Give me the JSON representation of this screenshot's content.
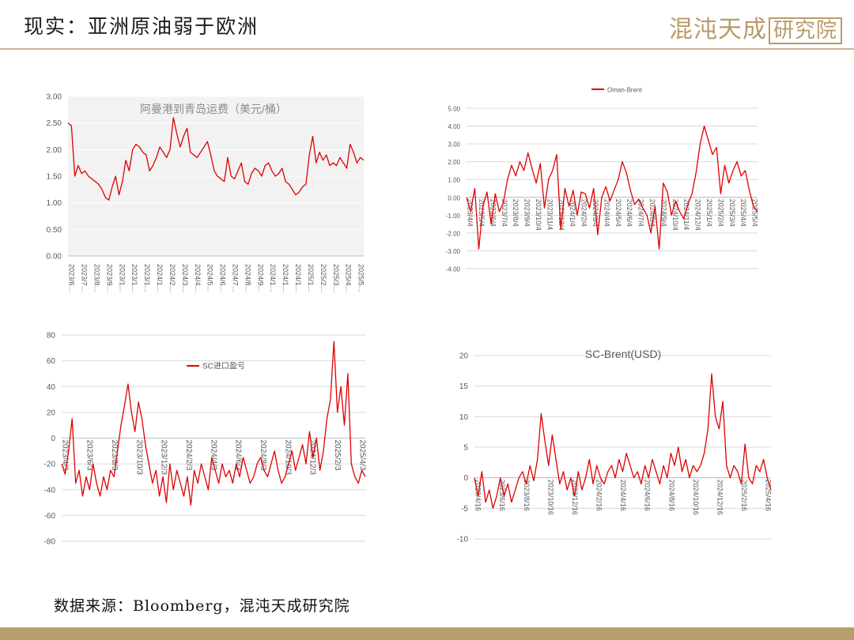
{
  "header": {
    "title": "现实：亚洲原油弱于欧洲",
    "logo_script": "混沌天成",
    "logo_box": "研究院"
  },
  "footer": {
    "source": "数据来源：Bloomberg，混沌天成研究院"
  },
  "colors": {
    "series": "#e00000",
    "accent": "#b89e6e",
    "grid": "#d9d9d9"
  },
  "chart_data": [
    {
      "type": "line",
      "title": "阿曼港到青岛运费（美元/桶）",
      "legend_position": "none",
      "grid": true,
      "ylim": [
        0,
        3
      ],
      "yticks": [
        "0.00",
        "0.50",
        "1.00",
        "1.50",
        "2.00",
        "2.50",
        "3.00"
      ],
      "x_labels": [
        "2023/6…",
        "2023/7…",
        "2023/8…",
        "2023/9…",
        "2023/1…",
        "2023/1…",
        "2023/1…",
        "2024/1…",
        "2024/2…",
        "2024/3…",
        "2024/4…",
        "2024/5…",
        "2024/6…",
        "2024/7…",
        "2024/8…",
        "2024/9…",
        "2024/1…",
        "2024/1…",
        "2024/1…",
        "2025/1…",
        "2025/2…",
        "2025/3…",
        "2025/4…",
        "2025/5…"
      ],
      "series": [
        {
          "values": [
            2.5,
            2.45,
            1.5,
            1.7,
            1.55,
            1.6,
            1.5,
            1.45,
            1.4,
            1.35,
            1.25,
            1.1,
            1.05,
            1.3,
            1.5,
            1.15,
            1.4,
            1.8,
            1.6,
            2.0,
            2.1,
            2.05,
            1.95,
            1.9,
            1.6,
            1.7,
            1.85,
            2.05,
            1.95,
            1.85,
            2.0,
            2.6,
            2.3,
            2.05,
            2.25,
            2.4,
            1.95,
            1.9,
            1.85,
            1.95,
            2.05,
            2.15,
            1.9,
            1.6,
            1.5,
            1.45,
            1.4,
            1.85,
            1.5,
            1.45,
            1.6,
            1.75,
            1.4,
            1.35,
            1.55,
            1.65,
            1.6,
            1.5,
            1.7,
            1.75,
            1.6,
            1.5,
            1.55,
            1.65,
            1.4,
            1.35,
            1.25,
            1.15,
            1.2,
            1.3,
            1.35,
            1.9,
            2.25,
            1.75,
            1.95,
            1.8,
            1.9,
            1.7,
            1.75,
            1.7,
            1.85,
            1.75,
            1.65,
            2.1,
            1.95,
            1.75,
            1.85,
            1.8
          ]
        }
      ]
    },
    {
      "type": "line",
      "title": "",
      "legend_position": "top",
      "grid": true,
      "ylim": [
        -4,
        5
      ],
      "yticks": [
        "-4.00",
        "-3.00",
        "-2.00",
        "-1.00",
        "0.00",
        "1.00",
        "2.00",
        "3.00",
        "4.00",
        "5.00"
      ],
      "x_labels": [
        "2023/4/4",
        "2023/5/4",
        "2023/6/4",
        "2023/7/4",
        "2023/8/4",
        "2023/9/4",
        "2023/10/4",
        "2023/11/4",
        "2023/12/4",
        "2024/1/4",
        "2024/2/4",
        "2024/3/4",
        "2024/4/4",
        "2024/5/4",
        "2024/6/4",
        "2024/7/4",
        "2024/8/4",
        "2024/9/4",
        "2024/10/4",
        "2024/11/4",
        "2024/12/4",
        "2025/1/4",
        "2025/2/4",
        "2025/3/4",
        "2025/4/4",
        "2025/5/4"
      ],
      "series": [
        {
          "name": "Oman-Brent",
          "values": [
            0.0,
            -0.8,
            0.5,
            -2.9,
            -0.5,
            0.3,
            -1.5,
            0.2,
            -0.8,
            -0.3,
            1.0,
            1.8,
            1.2,
            2.0,
            1.5,
            2.5,
            1.6,
            0.8,
            1.9,
            -0.6,
            1.0,
            1.5,
            2.4,
            -1.8,
            0.5,
            -0.5,
            0.4,
            -1.0,
            0.3,
            0.2,
            -0.6,
            0.5,
            -2.1,
            0.0,
            0.6,
            -0.2,
            0.4,
            1.0,
            2.0,
            1.4,
            0.4,
            -0.4,
            -0.1,
            -0.6,
            -1.0,
            -2.0,
            -0.5,
            -2.9,
            0.8,
            0.3,
            -1.0,
            -0.2,
            -0.8,
            -1.2,
            -0.4,
            0.2,
            1.4,
            3.0,
            4.0,
            3.2,
            2.4,
            2.8,
            0.2,
            1.8,
            0.8,
            1.5,
            2.0,
            1.2,
            1.5,
            0.4,
            -0.5,
            -0.8
          ]
        }
      ]
    },
    {
      "type": "line",
      "title": "",
      "legend_position": "top-right",
      "grid": true,
      "ylim": [
        -80,
        80
      ],
      "yticks": [
        "-80",
        "-60",
        "-40",
        "-20",
        "0",
        "20",
        "40",
        "60",
        "80"
      ],
      "x_labels": [
        "2023/4/3",
        "2023/6/3",
        "2023/8/3",
        "2023/10/3",
        "2023/12/3",
        "2024/2/3",
        "2024/4/3",
        "2024/6/3",
        "2024/8/3",
        "2024/10/3",
        "2024/12/3",
        "2025/2/3",
        "2025/4/3"
      ],
      "series": [
        {
          "name": "SC进口盈亏",
          "values": [
            -20,
            -28,
            -10,
            15,
            -35,
            -25,
            -45,
            -30,
            -40,
            -20,
            -35,
            -45,
            -30,
            -40,
            -25,
            -30,
            -10,
            10,
            25,
            42,
            20,
            5,
            28,
            15,
            -5,
            -20,
            -35,
            -25,
            -45,
            -30,
            -50,
            -20,
            -40,
            -25,
            -35,
            -45,
            -30,
            -52,
            -25,
            -35,
            -20,
            -30,
            -40,
            -15,
            -25,
            -35,
            -20,
            -30,
            -25,
            -35,
            -20,
            -30,
            -15,
            -25,
            -35,
            -30,
            -20,
            -15,
            -25,
            -30,
            -20,
            -10,
            -25,
            -35,
            -30,
            -20,
            -10,
            -25,
            -15,
            -5,
            -20,
            5,
            -15,
            0,
            -25,
            -10,
            15,
            30,
            75,
            20,
            40,
            10,
            50,
            -20,
            -30,
            -35,
            -25,
            -30
          ]
        }
      ]
    },
    {
      "type": "line",
      "title": "SC-Brent(USD)",
      "legend_position": "none",
      "grid": true,
      "ylim": [
        -10,
        20
      ],
      "yticks": [
        "-10",
        "-5",
        "0",
        "5",
        "10",
        "15",
        "20"
      ],
      "x_labels": [
        "2023/4/16",
        "2023/6/16",
        "2023/8/16",
        "2023/10/16",
        "2023/12/16",
        "2024/2/16",
        "2024/4/16",
        "2024/6/16",
        "2024/8/16",
        "2024/10/16",
        "2024/12/16",
        "2025/2/16",
        "2025/4/16"
      ],
      "series": [
        {
          "values": [
            0,
            -3,
            1,
            -4,
            -2,
            -5,
            -3,
            0,
            -3,
            -1,
            -4,
            -2,
            0,
            1,
            -1,
            2,
            -0.5,
            3,
            10.5,
            6,
            2,
            7,
            3,
            -1,
            1,
            -2,
            0,
            -3,
            1,
            -2,
            0,
            3,
            -1,
            2,
            0,
            -1,
            1,
            2,
            0,
            3,
            1,
            4,
            2,
            0,
            1,
            -1,
            2,
            0,
            3,
            1,
            -1,
            2,
            0,
            4,
            2,
            5,
            1,
            3,
            0,
            2,
            1,
            2,
            4,
            8,
            17,
            10,
            8,
            12.5,
            2,
            0,
            2,
            1,
            -1,
            5.5,
            0,
            -1,
            2,
            1,
            3,
            0,
            -2
          ]
        }
      ]
    }
  ]
}
